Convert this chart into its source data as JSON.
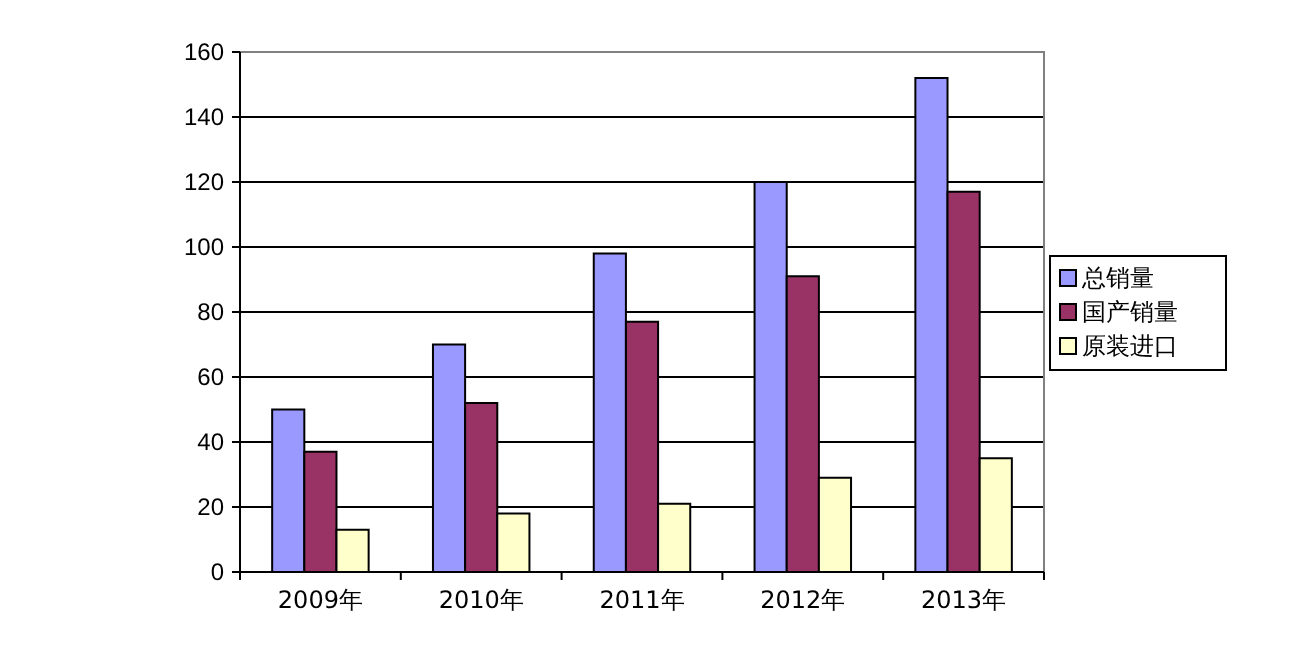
{
  "chart_data": {
    "type": "bar",
    "categories": [
      "2009年",
      "2010年",
      "2011年",
      "2012年",
      "2013年"
    ],
    "series": [
      {
        "name": "总销量",
        "color": "#9999ff",
        "values": [
          50,
          70,
          98,
          120,
          152
        ]
      },
      {
        "name": "国产销量",
        "color": "#993366",
        "values": [
          37,
          52,
          77,
          91,
          117
        ]
      },
      {
        "name": "原装进口",
        "color": "#ffffcc",
        "values": [
          13,
          18,
          21,
          29,
          35
        ]
      }
    ],
    "ylim": [
      0,
      160
    ],
    "yticks": [
      0,
      20,
      40,
      60,
      80,
      100,
      120,
      140,
      160
    ],
    "grid": "y",
    "legend": "right"
  }
}
